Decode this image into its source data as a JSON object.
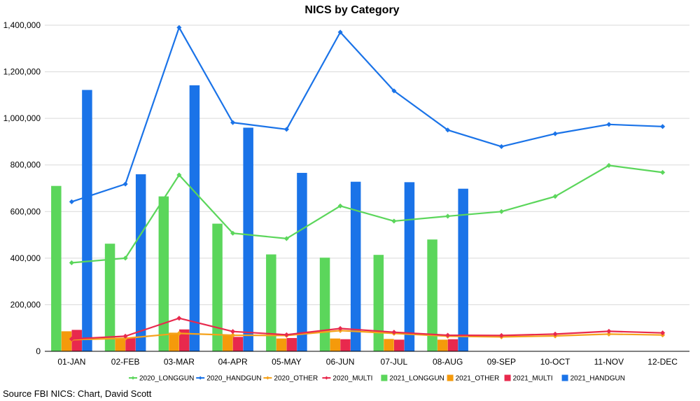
{
  "chart_data": {
    "type": "bar",
    "title": "NICS by Category",
    "source": "Source FBI NICS: Chart, David Scott",
    "categories": [
      "01-JAN",
      "02-FEB",
      "03-MAR",
      "04-APR",
      "05-MAY",
      "06-JUN",
      "07-JUL",
      "08-AUG",
      "09-SEP",
      "10-OCT",
      "11-NOV",
      "12-DEC"
    ],
    "ylim": [
      0,
      1400000
    ],
    "yticks": [
      0,
      200000,
      400000,
      600000,
      800000,
      1000000,
      1200000,
      1400000
    ],
    "ytick_labels": [
      "0",
      "200,000",
      "400,000",
      "600,000",
      "800,000",
      "1,000,000",
      "1,200,000",
      "1,400,000"
    ],
    "grid": true,
    "legend_position": "bottom",
    "line_series": [
      {
        "name": "2020_LONGGUN",
        "color": "#5bd65b",
        "values": [
          380000,
          400000,
          757000,
          507000,
          484000,
          624000,
          559000,
          580000,
          600000,
          665000,
          798000,
          768000
        ]
      },
      {
        "name": "2020_HANDGUN",
        "color": "#1a73e8",
        "values": [
          642000,
          718000,
          1390000,
          982000,
          953000,
          1370000,
          1118000,
          950000,
          879000,
          934000,
          974000,
          965000
        ]
      },
      {
        "name": "2020_OTHER",
        "color": "#f5a21b",
        "values": [
          50000,
          56000,
          77000,
          69000,
          68000,
          89000,
          77000,
          65000,
          62000,
          66000,
          74000,
          70000
        ]
      },
      {
        "name": "2020_MULTI",
        "color": "#e8294d",
        "values": [
          53000,
          65000,
          142000,
          85000,
          71000,
          98000,
          82000,
          69000,
          68000,
          74000,
          86000,
          79000
        ]
      }
    ],
    "bar_series": [
      {
        "name": "2021_LONGGUN",
        "color": "#5bd65b",
        "values": [
          710000,
          462000,
          665000,
          548000,
          416000,
          402000,
          414000,
          480000
        ]
      },
      {
        "name": "2021_OTHER",
        "color": "#f59a0b",
        "values": [
          86000,
          55000,
          80000,
          70000,
          55000,
          55000,
          53000,
          50000
        ]
      },
      {
        "name": "2021_MULTI",
        "color": "#e8294d",
        "values": [
          92000,
          58000,
          94000,
          62000,
          57000,
          52000,
          50000,
          52000
        ]
      },
      {
        "name": "2021_HANDGUN",
        "color": "#1a73e8",
        "values": [
          1122000,
          760000,
          1142000,
          960000,
          766000,
          728000,
          726000,
          698000
        ]
      }
    ],
    "legend_order": [
      "2020_LONGGUN",
      "2020_HANDGUN",
      "2020_OTHER",
      "2020_MULTI",
      "2021_LONGGUN",
      "2021_OTHER",
      "2021_MULTI",
      "2021_HANDGUN"
    ]
  }
}
